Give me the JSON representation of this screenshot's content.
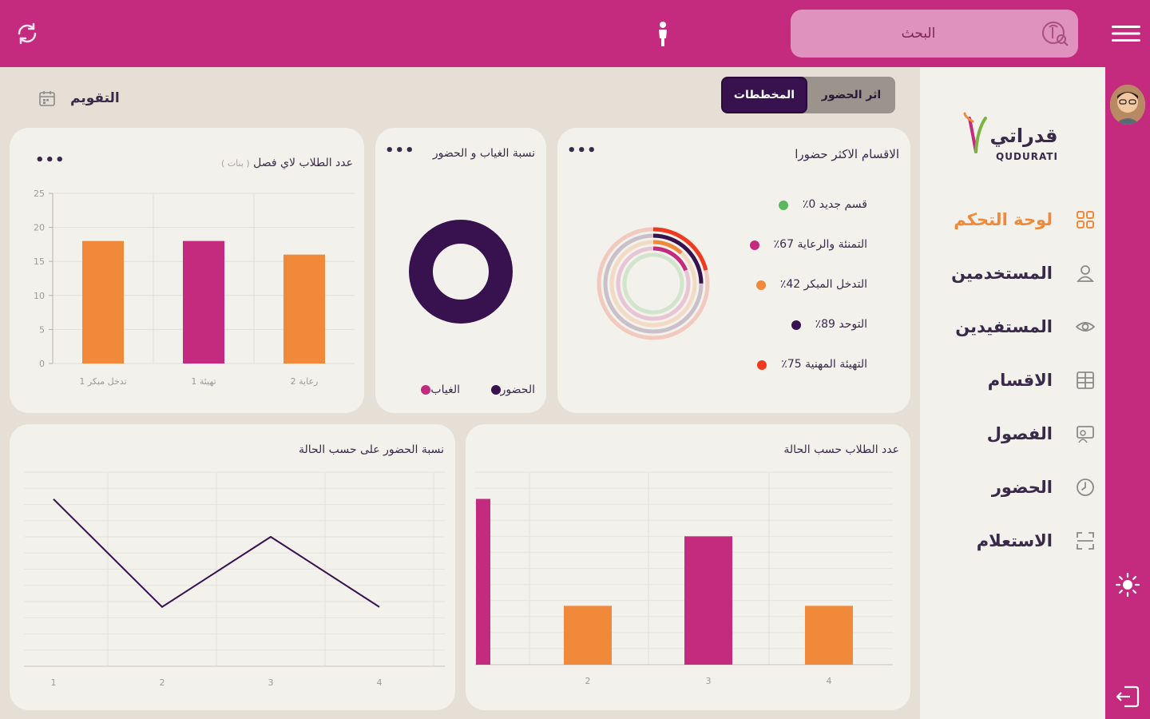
{
  "header": {
    "search_placeholder": "البحث"
  },
  "sidebar": {
    "logo_arabic": "قدراتي",
    "logo_latin": "QUDURATI",
    "items": [
      {
        "label": "لوحة التحكم",
        "icon": "grid-icon",
        "active": true
      },
      {
        "label": "المستخدمين",
        "icon": "user-icon",
        "active": false
      },
      {
        "label": "المستفيدين",
        "icon": "eye-icon",
        "active": false
      },
      {
        "label": "الاقسام",
        "icon": "table-icon",
        "active": false
      },
      {
        "label": "الفصول",
        "icon": "classroom-icon",
        "active": false
      },
      {
        "label": "الحضور",
        "icon": "clock-icon",
        "active": false
      },
      {
        "label": "الاستعلام",
        "icon": "scan-icon",
        "active": false
      }
    ]
  },
  "tabs": {
    "active": "المخططات",
    "other": "اثر الحضور"
  },
  "calendar": {
    "label": "التقويم"
  },
  "cards": {
    "departments": {
      "title": "الاقسام الاكثر حضورا",
      "legend": [
        {
          "label": "قسم جديد 0٪",
          "color": "#5cb85c"
        },
        {
          "label": "التمنئة والرعاية 67٪",
          "color": "#c42a7e"
        },
        {
          "label": "التدخل المبكر 42٪",
          "color": "#f08a3a"
        },
        {
          "label": "التوحد 89٪",
          "color": "#38124e"
        },
        {
          "label": "التهيئة المهنية 75٪",
          "color": "#f0391f"
        }
      ]
    },
    "attendance_ratio": {
      "title": "نسبة الغياب و الحضور",
      "legend": [
        {
          "label": "الحضور",
          "color": "#38124e"
        },
        {
          "label": "الغياب",
          "color": "#c42a7e"
        }
      ]
    },
    "students_per_class": {
      "title": "عدد الطلاب لاي فصل",
      "subtitle": "( بنات )"
    },
    "students_by_status": {
      "title": "عدد الطلاب حسب الحالة"
    },
    "attendance_by_status": {
      "title": "نسبة الحضور على حسب الحالة"
    }
  },
  "chart_data": [
    {
      "type": "pie",
      "title": "الاقسام الاكثر حضورا",
      "labels": [
        "قسم جديد",
        "التمنئة والرعاية",
        "التدخل المبكر",
        "التوحد",
        "التهيئة المهنية"
      ],
      "values": [
        0,
        67,
        42,
        89,
        75
      ],
      "colors": [
        "#5cb85c",
        "#c42a7e",
        "#f08a3a",
        "#38124e",
        "#f0391f"
      ]
    },
    {
      "type": "pie",
      "title": "نسبة الغياب و الحضور",
      "labels": [
        "الحضور",
        "الغياب"
      ],
      "values": [
        100,
        0
      ],
      "colors": [
        "#38124e",
        "#c42a7e"
      ]
    },
    {
      "type": "bar",
      "title": "عدد الطلاب لاي فصل",
      "subtitle": "( بنات )",
      "categories": [
        "تدخل مبكر 1",
        "تهيئة 1",
        "رعاية 2"
      ],
      "values": [
        18,
        18,
        16
      ],
      "colors": [
        "#f08a3a",
        "#c42a7e",
        "#f08a3a"
      ],
      "yticks": [
        0,
        5,
        10,
        15,
        20,
        25
      ],
      "ylim": [
        0,
        25
      ]
    },
    {
      "type": "bar",
      "title": "عدد الطلاب حسب الحالة",
      "categories": [
        "",
        "2",
        "3",
        "4"
      ],
      "values": [
        31,
        11,
        24,
        11
      ],
      "colors": [
        "#c42a7e",
        "#f08a3a",
        "#c42a7e",
        "#f08a3a"
      ],
      "ylim": [
        0,
        36
      ]
    },
    {
      "type": "line",
      "title": "نسبة الحضور على حسب الحالة",
      "x": [
        "1",
        "2",
        "3",
        "4"
      ],
      "values": [
        31,
        11,
        24,
        11
      ],
      "color": "#38124e",
      "ylim": [
        0,
        36
      ]
    }
  ]
}
